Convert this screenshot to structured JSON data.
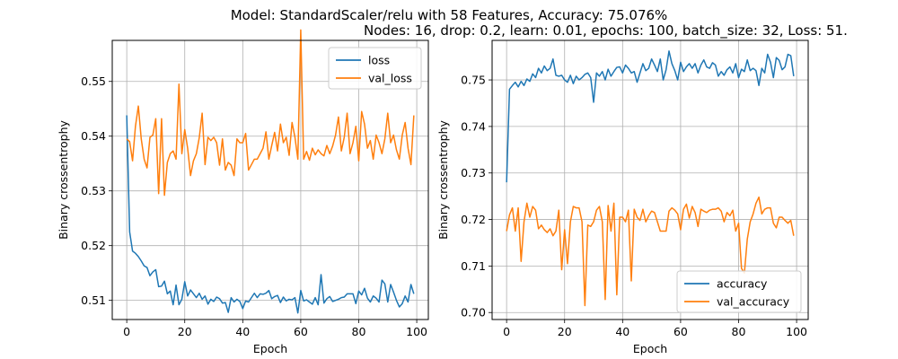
{
  "title_line1": "Model: StandardScaler/relu with 58 Features, Accuracy: 75.076%",
  "title_line2": "Nodes: 16, drop: 0.2, learn: 0.01, epochs: 100, batch_size: 32, Loss: 51.",
  "colors": {
    "series1": "#1f77b4",
    "series2": "#ff7f0e",
    "grid": "#b0b0b0"
  },
  "chart_data": [
    {
      "type": "line",
      "xlabel": "Epoch",
      "ylabel": "Binary crossentrophy",
      "xlim": [
        -5,
        104
      ],
      "ylim": [
        0.5065,
        0.5575
      ],
      "xticks": [
        0,
        20,
        40,
        60,
        80,
        100
      ],
      "yticks": [
        0.51,
        0.52,
        0.53,
        0.54,
        0.55
      ],
      "xtick_labels": [
        "0",
        "20",
        "40",
        "60",
        "80",
        "100"
      ],
      "ytick_labels": [
        "0.51",
        "0.52",
        "0.53",
        "0.54",
        "0.55"
      ],
      "grid": true,
      "legend_position": "upper-right",
      "series": [
        {
          "name": "loss",
          "values": [
            0.5438,
            0.5225,
            0.519,
            0.5186,
            0.518,
            0.5172,
            0.5163,
            0.516,
            0.5145,
            0.5152,
            0.5156,
            0.5125,
            0.5126,
            0.5135,
            0.5112,
            0.5117,
            0.5092,
            0.5128,
            0.5092,
            0.5102,
            0.5134,
            0.5108,
            0.5119,
            0.5112,
            0.5105,
            0.5113,
            0.5102,
            0.5108,
            0.5093,
            0.5102,
            0.5098,
            0.5106,
            0.5103,
            0.5095,
            0.5096,
            0.5078,
            0.5105,
            0.5097,
            0.5102,
            0.5098,
            0.5085,
            0.5099,
            0.5097,
            0.5105,
            0.5113,
            0.5105,
            0.5112,
            0.5111,
            0.5113,
            0.5118,
            0.5103,
            0.5107,
            0.5109,
            0.5096,
            0.5106,
            0.5099,
            0.5102,
            0.5101,
            0.5105,
            0.5077,
            0.5118,
            0.5099,
            0.5101,
            0.5097,
            0.5093,
            0.5105,
            0.5092,
            0.5147,
            0.5095,
            0.5103,
            0.5107,
            0.5098,
            0.51,
            0.5102,
            0.5105,
            0.5106,
            0.5112,
            0.5112,
            0.5112,
            0.5094,
            0.5117,
            0.511,
            0.5122,
            0.5104,
            0.5097,
            0.5108,
            0.5104,
            0.5097,
            0.5137,
            0.513,
            0.5097,
            0.5129,
            0.5115,
            0.51,
            0.5088,
            0.5094,
            0.5108,
            0.5097,
            0.5129,
            0.5112
          ]
        },
        {
          "name": "val_loss",
          "values": [
            0.5395,
            0.539,
            0.5355,
            0.5418,
            0.5455,
            0.5395,
            0.5358,
            0.5342,
            0.5398,
            0.5402,
            0.5432,
            0.5295,
            0.5432,
            0.5292,
            0.5352,
            0.5368,
            0.5373,
            0.5358,
            0.5495,
            0.5368,
            0.5412,
            0.5378,
            0.5328,
            0.5355,
            0.5368,
            0.5397,
            0.5442,
            0.5348,
            0.5398,
            0.5392,
            0.5398,
            0.5388,
            0.5347,
            0.5395,
            0.5338,
            0.5352,
            0.5347,
            0.5328,
            0.5395,
            0.5388,
            0.5388,
            0.5405,
            0.5338,
            0.5348,
            0.5358,
            0.5358,
            0.5368,
            0.5378,
            0.5408,
            0.5358,
            0.5383,
            0.5407,
            0.5373,
            0.5422,
            0.5388,
            0.5398,
            0.5365,
            0.5425,
            0.5398,
            0.5358,
            0.5594,
            0.5358,
            0.5372,
            0.5356,
            0.5378,
            0.5366,
            0.5375,
            0.5368,
            0.5364,
            0.5383,
            0.5368,
            0.5382,
            0.5402,
            0.5435,
            0.5373,
            0.5398,
            0.5442,
            0.5368,
            0.5388,
            0.5418,
            0.5355,
            0.5445,
            0.5422,
            0.5378,
            0.5392,
            0.5358,
            0.5402,
            0.5388,
            0.5368,
            0.5395,
            0.5442,
            0.5388,
            0.5402,
            0.5375,
            0.5358,
            0.5402,
            0.5425,
            0.5378,
            0.5348,
            0.5438
          ]
        }
      ]
    },
    {
      "type": "line",
      "xlabel": "Epoch",
      "ylabel": "Binary crossentrophy",
      "xlim": [
        -5,
        104
      ],
      "ylim": [
        0.6985,
        0.7585
      ],
      "xticks": [
        0,
        20,
        40,
        60,
        80,
        100
      ],
      "yticks": [
        0.7,
        0.71,
        0.72,
        0.73,
        0.74,
        0.75
      ],
      "xtick_labels": [
        "0",
        "20",
        "40",
        "60",
        "80",
        "100"
      ],
      "ytick_labels": [
        "0.70",
        "0.71",
        "0.72",
        "0.73",
        "0.74",
        "0.75"
      ],
      "grid": true,
      "legend_position": "lower-right",
      "series": [
        {
          "name": "accuracy",
          "values": [
            0.728,
            0.748,
            0.7488,
            0.7495,
            0.7485,
            0.7497,
            0.7488,
            0.7502,
            0.7497,
            0.7513,
            0.7505,
            0.7525,
            0.7515,
            0.753,
            0.752,
            0.7525,
            0.7545,
            0.751,
            0.7508,
            0.751,
            0.75,
            0.7495,
            0.751,
            0.7492,
            0.7508,
            0.75,
            0.7505,
            0.7512,
            0.7515,
            0.7505,
            0.7452,
            0.7515,
            0.7508,
            0.7518,
            0.75,
            0.7523,
            0.7508,
            0.7518,
            0.7527,
            0.7528,
            0.7515,
            0.7532,
            0.7525,
            0.7515,
            0.7518,
            0.7495,
            0.7515,
            0.7535,
            0.752,
            0.7525,
            0.7545,
            0.7532,
            0.7518,
            0.7545,
            0.75,
            0.7522,
            0.7562,
            0.7535,
            0.752,
            0.75,
            0.7538,
            0.7518,
            0.7528,
            0.7535,
            0.7525,
            0.7535,
            0.7515,
            0.7532,
            0.7543,
            0.7528,
            0.7525,
            0.7537,
            0.7532,
            0.7508,
            0.7518,
            0.751,
            0.7522,
            0.7528,
            0.7515,
            0.7535,
            0.7505,
            0.7523,
            0.7518,
            0.7543,
            0.752,
            0.7525,
            0.752,
            0.7488,
            0.7525,
            0.7515,
            0.7555,
            0.7538,
            0.7505,
            0.7548,
            0.7542,
            0.7522,
            0.7528,
            0.7555,
            0.7552,
            0.7508
          ]
        },
        {
          "name": "val_accuracy",
          "values": [
            0.7175,
            0.721,
            0.7225,
            0.7175,
            0.7225,
            0.711,
            0.7195,
            0.7235,
            0.7205,
            0.7228,
            0.722,
            0.718,
            0.7188,
            0.7178,
            0.7172,
            0.718,
            0.7165,
            0.7175,
            0.722,
            0.7092,
            0.7178,
            0.7105,
            0.7195,
            0.7228,
            0.7225,
            0.7225,
            0.7195,
            0.7015,
            0.7188,
            0.7185,
            0.7195,
            0.722,
            0.7228,
            0.7195,
            0.7028,
            0.723,
            0.7175,
            0.7235,
            0.7038,
            0.7205,
            0.7205,
            0.7195,
            0.722,
            0.7068,
            0.7222,
            0.7205,
            0.7198,
            0.7222,
            0.7195,
            0.7208,
            0.7218,
            0.7215,
            0.7195,
            0.7175,
            0.7175,
            0.7175,
            0.7218,
            0.7225,
            0.722,
            0.7212,
            0.7178,
            0.7222,
            0.7233,
            0.7203,
            0.7228,
            0.7215,
            0.7185,
            0.7222,
            0.7218,
            0.7215,
            0.722,
            0.7222,
            0.7222,
            0.7225,
            0.7218,
            0.7195,
            0.7215,
            0.7208,
            0.722,
            0.7175,
            0.7192,
            0.7095,
            0.7085,
            0.7158,
            0.7195,
            0.7212,
            0.7235,
            0.7248,
            0.7212,
            0.7222,
            0.7225,
            0.7225,
            0.7192,
            0.7182,
            0.7205,
            0.7205,
            0.7198,
            0.7192,
            0.7198,
            0.7165
          ]
        }
      ]
    }
  ]
}
